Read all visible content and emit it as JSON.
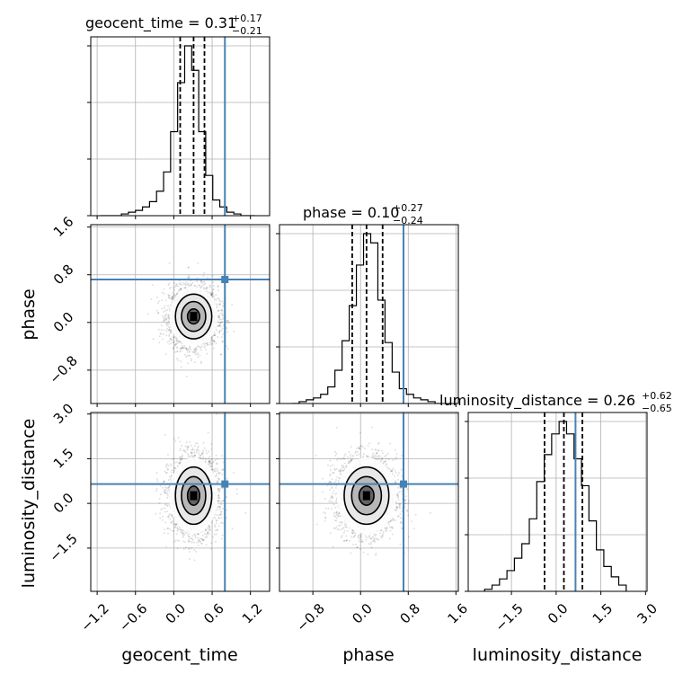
{
  "chart_data": {
    "type": "corner",
    "parameters": [
      "geocent_time",
      "phase",
      "luminosity_distance"
    ],
    "truths": {
      "geocent_time": 0.8,
      "phase": 0.72,
      "luminosity_distance": 0.65
    },
    "titles": [
      {
        "param": "geocent_time",
        "label": "geocent_time = 0.31",
        "upper": "+0.17",
        "lower": "−0.21"
      },
      {
        "param": "phase",
        "label": "phase = 0.10",
        "upper": "+0.27",
        "lower": "−0.24"
      },
      {
        "param": "luminosity_distance",
        "label": "luminosity_distance = 0.26",
        "upper": "+0.62",
        "lower": "−0.65"
      }
    ],
    "axes": {
      "geocent_time": {
        "range": [
          -1.3,
          1.5
        ],
        "ticks": [
          -1.2,
          -0.6,
          0.0,
          0.6,
          1.2
        ],
        "tick_labels": [
          "−1.2",
          "−0.6",
          "0.0",
          "0.6",
          "1.2"
        ]
      },
      "phase": {
        "range": [
          -1.36,
          1.64
        ],
        "ticks": [
          -0.8,
          0.0,
          0.8,
          1.6
        ],
        "tick_labels": [
          "−0.8",
          "0.0",
          "0.8",
          "1.6"
        ]
      },
      "luminosity_distance": {
        "range": [
          -2.95,
          3.05
        ],
        "ticks": [
          -1.5,
          0.0,
          1.5,
          3.0
        ],
        "tick_labels": [
          "−1.5",
          "0.0",
          "1.5",
          "3.0"
        ]
      }
    },
    "marginals": {
      "geocent_time": {
        "edges": [
          -1.15,
          -1.04,
          -0.93,
          -0.82,
          -0.71,
          -0.6,
          -0.49,
          -0.38,
          -0.27,
          -0.16,
          -0.05,
          0.06,
          0.17,
          0.28,
          0.39,
          0.5,
          0.61,
          0.72,
          0.83,
          0.94,
          1.05,
          1.16,
          1.27
        ],
        "counts": [
          0,
          0,
          0,
          1,
          2,
          3,
          5,
          8,
          14,
          25,
          48,
          76,
          97,
          83,
          48,
          23,
          9,
          5,
          2,
          1,
          0,
          0
        ],
        "quantiles": [
          0.1,
          0.31,
          0.48
        ]
      },
      "phase": {
        "edges": [
          -1.15,
          -1.03,
          -0.91,
          -0.79,
          -0.67,
          -0.55,
          -0.43,
          -0.31,
          -0.19,
          -0.07,
          0.05,
          0.17,
          0.29,
          0.41,
          0.53,
          0.65,
          0.77,
          0.89,
          1.01,
          1.13,
          1.25,
          1.37
        ],
        "counts": [
          0,
          1,
          2,
          3,
          5,
          9,
          18,
          34,
          53,
          75,
          92,
          87,
          56,
          33,
          17,
          8,
          5,
          3,
          2,
          1,
          0
        ],
        "quantiles": [
          -0.14,
          0.1,
          0.37
        ]
      },
      "luminosity_distance": {
        "edges": [
          -2.4,
          -2.15,
          -1.9,
          -1.65,
          -1.4,
          -1.15,
          -0.9,
          -0.65,
          -0.4,
          -0.15,
          0.1,
          0.35,
          0.6,
          0.85,
          1.1,
          1.35,
          1.6,
          1.85,
          2.1,
          2.35
        ],
        "counts": [
          1,
          3,
          6,
          10,
          16,
          23,
          35,
          53,
          66,
          76,
          82,
          76,
          64,
          51,
          34,
          20,
          12,
          7,
          3
        ],
        "quantiles": [
          -0.39,
          0.26,
          0.88
        ]
      }
    },
    "posterior_2d": {
      "mean": {
        "geocent_time": 0.31,
        "phase": 0.1,
        "luminosity_distance": 0.26
      },
      "sigma": {
        "geocent_time": 0.19,
        "phase": 0.25,
        "luminosity_distance": 0.64
      },
      "contour_levels_sigma": [
        0.5,
        1.0,
        1.5,
        2.0
      ],
      "n_samples": 3000
    },
    "grid": true
  }
}
